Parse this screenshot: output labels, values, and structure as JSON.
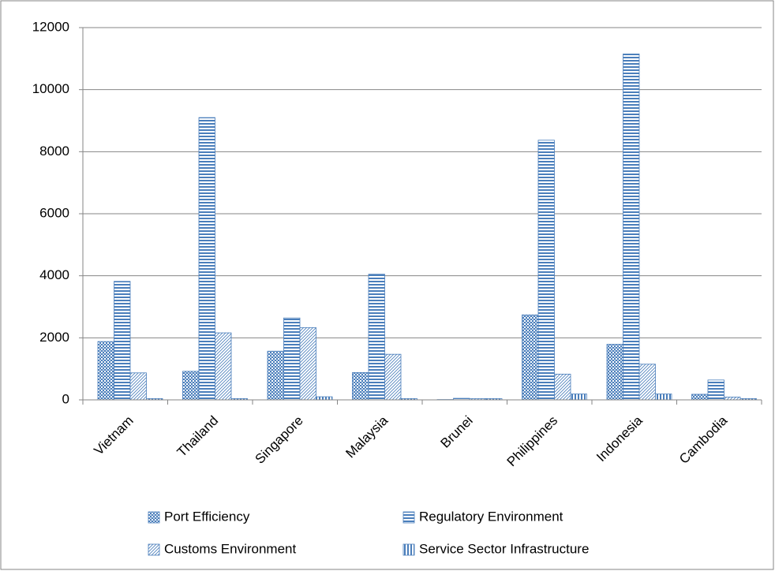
{
  "chart_data": {
    "type": "bar",
    "categories": [
      "Vietnam",
      "Thailand",
      "Singapore",
      "Malaysia",
      "Brunei",
      "Philippines",
      "Indonesia",
      "Cambodia"
    ],
    "series": [
      {
        "name": "Port Efficiency",
        "color": "#4a7ebb",
        "pattern": "checker",
        "values": [
          1880,
          920,
          1570,
          880,
          10,
          2740,
          1790,
          180
        ]
      },
      {
        "name": "Regulatory Environment",
        "color": "#4a7ebb",
        "pattern": "horizontal",
        "values": [
          3820,
          9100,
          2640,
          4050,
          50,
          8370,
          11150,
          640
        ]
      },
      {
        "name": "Customs Environment",
        "color": "#4a7ebb",
        "pattern": "diagonal",
        "values": [
          870,
          2160,
          2330,
          1470,
          40,
          830,
          1150,
          90
        ]
      },
      {
        "name": "Service Sector Infrastructure",
        "color": "#4a7ebb",
        "pattern": "vertical",
        "values": [
          40,
          40,
          100,
          40,
          40,
          190,
          190,
          40
        ]
      }
    ],
    "ylim": [
      0,
      12000
    ],
    "yticks": [
      0,
      2000,
      4000,
      6000,
      8000,
      10000,
      12000
    ],
    "grid": true,
    "legend": "bottom"
  }
}
